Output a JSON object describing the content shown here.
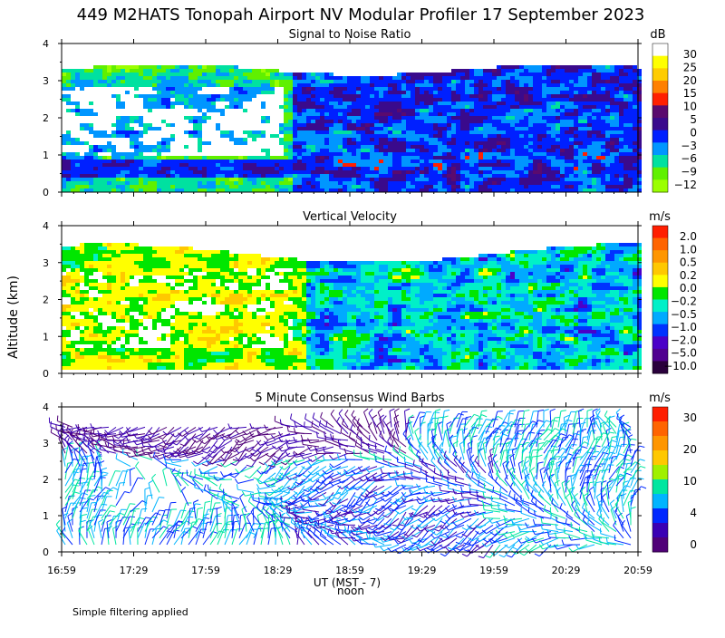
{
  "title": "449 M2HATS Tonopah Airport NV Modular Profiler 17 September 2023",
  "ylabel": "Altitude (km)",
  "xlabel": "UT  (MST - 7)",
  "noon_label": "noon",
  "footnote": "Simple filtering applied",
  "chart_data": [
    {
      "type": "heatmap",
      "title": "Signal to Noise Ratio",
      "unit": "dB",
      "x_ticks": [
        "16:59",
        "17:29",
        "17:59",
        "18:29",
        "18:59",
        "19:29",
        "19:59",
        "20:29",
        "20:59"
      ],
      "y_ticks": [
        "0",
        "1",
        "2",
        "3",
        "4"
      ],
      "ylim": [
        0,
        4
      ],
      "colorbar": {
        "labels": [
          "30",
          "25",
          "20",
          "15",
          "10",
          "5",
          "0",
          "−3",
          "−6",
          "−9",
          "−12"
        ],
        "colors": [
          "#ffffff",
          "#ffff00",
          "#ffcc00",
          "#ff8000",
          "#ff2000",
          "#5a0a6e",
          "#3a0a8c",
          "#0020ff",
          "#0096ff",
          "#00e1a0",
          "#60f000",
          "#9bff00"
        ]
      }
    },
    {
      "type": "heatmap",
      "title": "Vertical Velocity",
      "unit": "m/s",
      "x_ticks": [
        "16:59",
        "17:29",
        "17:59",
        "18:29",
        "18:59",
        "19:29",
        "19:59",
        "20:29",
        "20:59"
      ],
      "y_ticks": [
        "0",
        "1",
        "2",
        "3",
        "4"
      ],
      "ylim": [
        0,
        4
      ],
      "colorbar": {
        "labels": [
          "2.0",
          "1.0",
          "0.5",
          "0.2",
          "0.0",
          "−0.2",
          "−0.5",
          "−1.0",
          "−2.0",
          "−5.0",
          "−10.0"
        ],
        "colors": [
          "#ff1e00",
          "#ff6400",
          "#ff9600",
          "#ffc800",
          "#ffff00",
          "#00e600",
          "#00f0c8",
          "#00aaff",
          "#0032ff",
          "#4b00c8",
          "#500090",
          "#2a003c"
        ]
      }
    },
    {
      "type": "wind_barbs",
      "title": "5 Minute Consensus Wind Barbs",
      "unit": "m/s",
      "x_ticks": [
        "16:59",
        "17:29",
        "17:59",
        "18:29",
        "18:59",
        "19:29",
        "19:59",
        "20:29",
        "20:59"
      ],
      "y_ticks": [
        "0",
        "1",
        "2",
        "3",
        "4"
      ],
      "ylim": [
        0,
        4
      ],
      "colorbar": {
        "labels": [
          "30",
          "20",
          "10",
          "4",
          "0"
        ],
        "colors": [
          "#ff1e00",
          "#ff6400",
          "#ff9600",
          "#ffc800",
          "#a0f000",
          "#00e6a0",
          "#00b4ff",
          "#0028ff",
          "#3a00b4",
          "#500078"
        ]
      }
    }
  ]
}
